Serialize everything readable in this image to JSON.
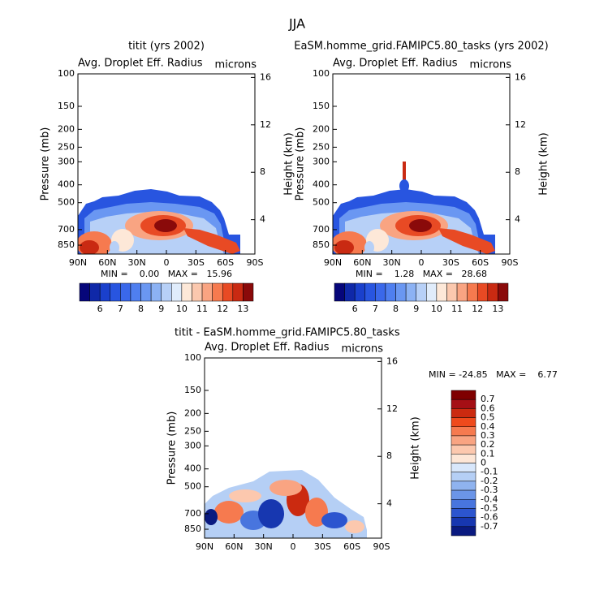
{
  "title": "JJA",
  "chart_data": [
    {
      "type": "contour",
      "title": "titit (yrs 2002)",
      "subtitle": "Avg. Droplet Eff. Radius",
      "units": "microns",
      "ylabel": "Pressure (mb)",
      "y2label": "Height (km)",
      "xlim": [
        90,
        -90
      ],
      "xticks": [
        {
          "value": 90,
          "label": "90N"
        },
        {
          "value": 60,
          "label": "60N"
        },
        {
          "value": 30,
          "label": "30N"
        },
        0,
        {
          "value": -30,
          "label": "30S"
        },
        {
          "value": -60,
          "label": "60S"
        },
        {
          "value": -90,
          "label": "90S"
        }
      ],
      "ylim": [
        950,
        100
      ],
      "ylog": true,
      "yticks": [
        100,
        150,
        200,
        250,
        300,
        400,
        500,
        700,
        850
      ],
      "y2lim": [
        1.1,
        16.3
      ],
      "y2ticks": [
        4,
        8,
        12,
        16
      ],
      "stats": "MIN =    0.00   MAX =   15.96",
      "colorbar": {
        "orientation": "horizontal",
        "ticks": [
          6,
          7,
          8,
          9,
          10,
          11,
          12,
          13
        ],
        "colors": [
          "#06067a",
          "#0f28a8",
          "#1a40cc",
          "#2855e0",
          "#3a68ea",
          "#4f7ff0",
          "#6a97f2",
          "#8cb2f4",
          "#b7d0f7",
          "#e0ecfb",
          "#fde8d8",
          "#fbc8ae",
          "#f9a482",
          "#f67a4f",
          "#e84a24",
          "#c92a12",
          "#8a0a0a"
        ]
      }
    },
    {
      "type": "contour",
      "title": "EaSM.homme_grid.FAMIPC5.80_tasks (yrs 2002)",
      "subtitle": "Avg. Droplet Eff. Radius",
      "units": "microns",
      "ylabel": "Pressure (mb)",
      "y2label": "Height (km)",
      "xlim": [
        90,
        -90
      ],
      "xticks": [
        {
          "value": 90,
          "label": "90N"
        },
        {
          "value": 60,
          "label": "60N"
        },
        {
          "value": 30,
          "label": "30N"
        },
        0,
        {
          "value": -30,
          "label": "30S"
        },
        {
          "value": -60,
          "label": "60S"
        },
        {
          "value": -90,
          "label": "90S"
        }
      ],
      "ylim": [
        950,
        100
      ],
      "ylog": true,
      "yticks": [
        100,
        150,
        200,
        250,
        300,
        400,
        500,
        700,
        850
      ],
      "y2lim": [
        1.1,
        16.3
      ],
      "y2ticks": [
        4,
        8,
        12,
        16
      ],
      "stats": "MIN =    1.28   MAX =   28.68",
      "colorbar": {
        "orientation": "horizontal",
        "ticks": [
          6,
          7,
          8,
          9,
          10,
          11,
          12,
          13
        ],
        "colors": [
          "#06067a",
          "#0f28a8",
          "#1a40cc",
          "#2855e0",
          "#3a68ea",
          "#4f7ff0",
          "#6a97f2",
          "#8cb2f4",
          "#b7d0f7",
          "#e0ecfb",
          "#fde8d8",
          "#fbc8ae",
          "#f9a482",
          "#f67a4f",
          "#e84a24",
          "#c92a12",
          "#8a0a0a"
        ]
      }
    },
    {
      "type": "contour",
      "title": "titit - EaSM.homme_grid.FAMIPC5.80_tasks",
      "subtitle": "Avg. Droplet Eff. Radius",
      "units": "microns",
      "ylabel": "Pressure (mb)",
      "y2label": "Height (km)",
      "xlim": [
        90,
        -90
      ],
      "xticks": [
        {
          "value": 90,
          "label": "90N"
        },
        {
          "value": 60,
          "label": "60N"
        },
        {
          "value": 30,
          "label": "30N"
        },
        0,
        {
          "value": -30,
          "label": "30S"
        },
        {
          "value": -60,
          "label": "60S"
        },
        {
          "value": -90,
          "label": "90S"
        }
      ],
      "ylim": [
        950,
        100
      ],
      "ylog": true,
      "yticks": [
        100,
        150,
        200,
        250,
        300,
        400,
        500,
        700,
        850
      ],
      "y2lim": [
        1.1,
        16.3
      ],
      "y2ticks": [
        4,
        8,
        12,
        16
      ],
      "stats": "MIN = -24.85   MAX =    6.77",
      "colorbar": {
        "orientation": "vertical",
        "ticks": [
          0.7,
          0.6,
          0.5,
          0.4,
          0.3,
          0.2,
          0.1,
          0,
          -0.1,
          -0.2,
          -0.3,
          -0.4,
          -0.5,
          -0.6,
          -0.7
        ],
        "colors": [
          "#7f0000",
          "#a50f15",
          "#cb2a10",
          "#ef4a1c",
          "#f67a4f",
          "#f9a482",
          "#fcc8ae",
          "#fde6d6",
          "#d8e7fb",
          "#b5cff5",
          "#8fb3ef",
          "#6b95e8",
          "#4875de",
          "#2c55cf",
          "#1737b0",
          "#0a1a80"
        ]
      }
    }
  ]
}
